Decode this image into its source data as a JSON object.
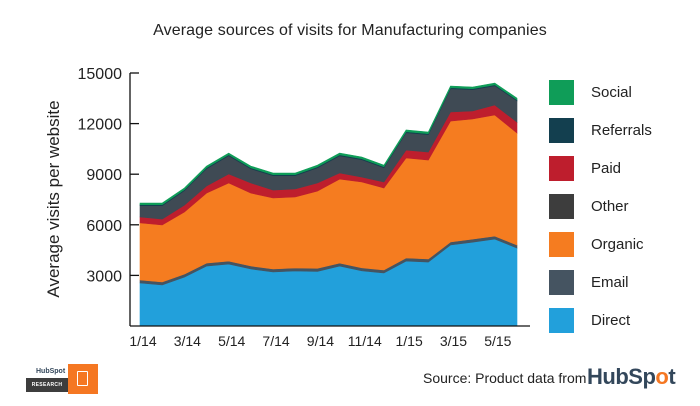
{
  "chart_data": {
    "type": "area",
    "stacked": true,
    "title": "Average sources of visits for Manufacturing companies",
    "xlabel": "",
    "ylabel": "Average visits per website",
    "ylim": [
      0,
      15000
    ],
    "yticks": [
      3000,
      6000,
      9000,
      12000,
      15000
    ],
    "x": [
      "1/14",
      "2/14",
      "3/14",
      "4/14",
      "5/14",
      "6/14",
      "7/14",
      "8/14",
      "9/14",
      "10/14",
      "11/14",
      "12/14",
      "1/15",
      "2/15",
      "3/15",
      "4/15",
      "5/15",
      "6/15"
    ],
    "xtick_labels": [
      "1/14",
      "3/14",
      "5/14",
      "7/14",
      "9/14",
      "11/14",
      "1/15",
      "3/15",
      "5/15"
    ],
    "grid": false,
    "legend_position": "right",
    "series": [
      {
        "name": "Direct",
        "color": "#22a0db",
        "values": [
          2550,
          2430,
          2900,
          3550,
          3670,
          3380,
          3200,
          3260,
          3240,
          3550,
          3270,
          3140,
          3850,
          3790,
          4800,
          4970,
          5150,
          4620
        ]
      },
      {
        "name": "Email",
        "color": "#455461",
        "values": [
          180,
          180,
          180,
          180,
          180,
          180,
          180,
          180,
          180,
          180,
          180,
          180,
          180,
          180,
          180,
          180,
          180,
          180
        ]
      },
      {
        "name": "Organic",
        "color": "#f57c20",
        "values": [
          3380,
          3380,
          3680,
          4150,
          4630,
          4320,
          4210,
          4210,
          4580,
          4980,
          5090,
          4860,
          5930,
          5870,
          7170,
          7120,
          7180,
          6640
        ]
      },
      {
        "name": "Paid",
        "color": "#be1e2d",
        "values": [
          350,
          350,
          410,
          420,
          530,
          600,
          470,
          470,
          480,
          360,
          290,
          360,
          470,
          470,
          540,
          480,
          590,
          650
        ]
      },
      {
        "name": "Other",
        "color": "#3f4a54",
        "values": [
          670,
          790,
          850,
          1020,
          1080,
          840,
          850,
          790,
          900,
          1020,
          1030,
          840,
          1030,
          1030,
          1380,
          1260,
          1140,
          1260
        ]
      },
      {
        "name": "Referrals",
        "color": "#133f4f",
        "values": [
          60,
          60,
          60,
          60,
          60,
          60,
          60,
          60,
          60,
          60,
          60,
          60,
          60,
          60,
          60,
          60,
          60,
          60
        ]
      },
      {
        "name": "Social",
        "color": "#0f9d58",
        "values": [
          100,
          100,
          100,
          100,
          100,
          100,
          100,
          100,
          100,
          100,
          100,
          100,
          100,
          100,
          100,
          100,
          100,
          100
        ]
      }
    ],
    "legend": [
      "Social",
      "Referrals",
      "Paid",
      "Other",
      "Organic",
      "Email",
      "Direct"
    ]
  },
  "footer": {
    "source_text": "Source: Product data from",
    "brand_prefix": "HubSp",
    "brand_o": "o",
    "brand_suffix": "t",
    "logo_brand": "HubSpot",
    "logo_research": "RESEARCH"
  }
}
